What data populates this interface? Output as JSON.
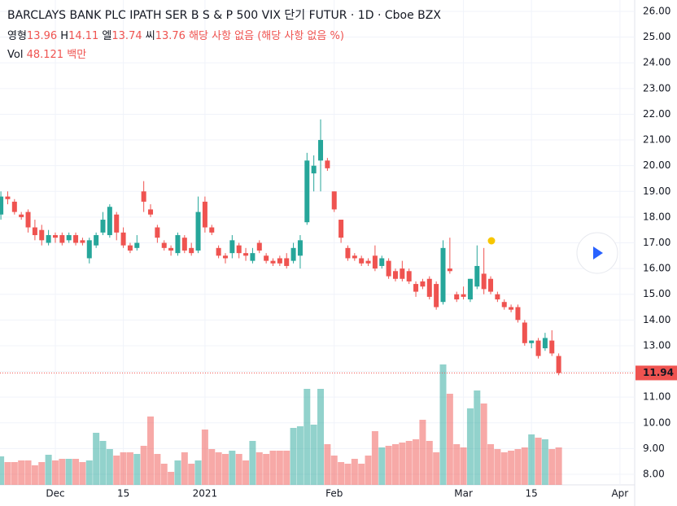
{
  "chart_data": {
    "type": "candlestick",
    "title": "BARCLAYS BANK PLC IPATH SER B S & P 500 VIX 단기 FUTUR · 1D · Cboe BZX",
    "legend": {
      "open_label": "영형",
      "open": 13.96,
      "high_label": "H",
      "high": 14.11,
      "low_label": "엘",
      "low": 13.74,
      "close_label": "씨",
      "close": 13.76,
      "change": "해당 사항 없음 (해당 사항 없음 %)",
      "volume_label": "Vol",
      "volume": 48.121,
      "volume_unit": "백만"
    },
    "last_price": 11.94,
    "up_color": "#26a69a",
    "down_color": "#ef5350",
    "grid": true,
    "categories": [
      null,
      null,
      null,
      null,
      null,
      null,
      null,
      null,
      "Dec",
      null,
      null,
      null,
      null,
      null,
      null,
      null,
      null,
      null,
      "15",
      null,
      null,
      null,
      null,
      null,
      null,
      null,
      null,
      null,
      null,
      null,
      "2021",
      null,
      null,
      null,
      null,
      null,
      null,
      null,
      null,
      null,
      null,
      null,
      null,
      null,
      null,
      null,
      null,
      null,
      null,
      "Feb",
      null,
      null,
      null,
      null,
      null,
      null,
      null,
      null,
      null,
      null,
      null,
      null,
      null,
      null,
      null,
      null,
      null,
      null,
      "Mar",
      null,
      null,
      null,
      null,
      null,
      null,
      null,
      null,
      null,
      "15",
      null,
      null,
      null,
      null,
      null,
      null,
      null,
      null,
      null,
      null,
      null,
      null,
      "Apr"
    ],
    "open": [
      18.1,
      18.8,
      18.6,
      18.1,
      18.2,
      17.6,
      17.5,
      17.0,
      17.3,
      17.3,
      17.1,
      17.3,
      17.1,
      16.4,
      16.9,
      17.4,
      17.3,
      18.1,
      17.4,
      16.9,
      16.8,
      19.0,
      18.3,
      17.6,
      17.0,
      16.8,
      16.6,
      17.2,
      16.8,
      16.7,
      18.6,
      17.6,
      16.8,
      16.5,
      16.6,
      16.9,
      16.6,
      16.3,
      17.0,
      16.5,
      16.3,
      16.4,
      16.4,
      16.3,
      16.5,
      17.8,
      19.7,
      20.2,
      20.2,
      19.0,
      17.9,
      16.8,
      16.5,
      16.4,
      16.3,
      16.5,
      16.1,
      16.3,
      15.9,
      16.0,
      15.9,
      15.4,
      15.5,
      15.6,
      15.4,
      14.7,
      16.0,
      15.0,
      15.0,
      14.8,
      15.3,
      15.8,
      15.6,
      15.0,
      14.7,
      14.5,
      14.5,
      13.9,
      13.1,
      13.2,
      12.9,
      13.2,
      12.6,
      null,
      null,
      null,
      null,
      null,
      null,
      null,
      null,
      null
    ],
    "high": [
      19.0,
      19.0,
      18.7,
      18.2,
      18.3,
      17.9,
      17.7,
      17.5,
      17.4,
      17.4,
      17.4,
      17.4,
      17.2,
      17.2,
      17.4,
      18.2,
      18.5,
      18.2,
      17.6,
      17.0,
      17.3,
      19.4,
      18.5,
      17.7,
      17.1,
      16.9,
      17.4,
      17.3,
      17.0,
      18.8,
      18.8,
      17.7,
      16.9,
      16.6,
      17.3,
      17.0,
      16.8,
      16.8,
      17.1,
      16.6,
      16.4,
      16.5,
      16.6,
      17.0,
      17.3,
      20.5,
      20.4,
      21.8,
      20.3,
      19.0,
      17.9,
      16.9,
      16.6,
      16.5,
      16.4,
      16.9,
      16.5,
      16.4,
      16.0,
      16.3,
      16.0,
      15.5,
      15.6,
      15.7,
      15.5,
      17.1,
      17.2,
      15.1,
      15.3,
      15.6,
      16.9,
      16.8,
      15.7,
      15.1,
      14.8,
      14.6,
      14.6,
      14.0,
      13.2,
      13.3,
      13.5,
      13.6,
      12.7,
      null,
      null,
      null,
      null,
      null,
      null,
      null,
      null,
      null
    ],
    "low": [
      17.9,
      18.5,
      18.1,
      17.9,
      17.4,
      17.1,
      16.9,
      16.9,
      17.0,
      16.9,
      17.0,
      16.9,
      16.9,
      16.2,
      16.8,
      17.3,
      17.2,
      17.1,
      16.8,
      16.6,
      16.7,
      18.2,
      18.0,
      17.0,
      16.7,
      16.5,
      16.5,
      16.6,
      16.5,
      16.6,
      17.4,
      17.3,
      16.4,
      16.2,
      16.4,
      16.4,
      16.3,
      16.2,
      16.6,
      16.2,
      16.1,
      16.1,
      16.0,
      16.2,
      16.0,
      17.7,
      19.0,
      19.0,
      19.8,
      18.2,
      17.0,
      16.3,
      16.3,
      16.1,
      16.1,
      15.9,
      16.0,
      15.6,
      15.5,
      15.5,
      15.4,
      14.9,
      15.2,
      14.8,
      14.4,
      14.6,
      15.8,
      14.7,
      14.8,
      14.7,
      15.2,
      15.0,
      15.0,
      14.7,
      14.4,
      14.3,
      13.9,
      13.0,
      12.9,
      12.5,
      12.8,
      12.6,
      11.85,
      null,
      null,
      null,
      null,
      null,
      null,
      null,
      null,
      null
    ],
    "close": [
      18.8,
      18.7,
      18.2,
      18.0,
      17.6,
      17.3,
      17.1,
      17.3,
      17.2,
      17.0,
      17.3,
      17.0,
      17.0,
      17.1,
      17.3,
      17.9,
      18.4,
      17.4,
      16.9,
      16.7,
      17.0,
      18.6,
      18.1,
      17.2,
      16.8,
      16.7,
      17.3,
      16.7,
      16.6,
      18.2,
      17.6,
      17.4,
      16.5,
      16.4,
      17.1,
      16.6,
      16.5,
      16.6,
      16.7,
      16.3,
      16.2,
      16.2,
      16.1,
      16.8,
      17.1,
      20.2,
      20.0,
      21.0,
      19.9,
      18.3,
      17.2,
      16.4,
      16.4,
      16.2,
      16.2,
      16.0,
      16.4,
      15.7,
      15.6,
      15.6,
      15.5,
      15.1,
      15.3,
      14.9,
      14.5,
      16.8,
      15.9,
      14.8,
      14.9,
      15.6,
      16.1,
      15.2,
      15.1,
      14.8,
      14.5,
      14.4,
      14.0,
      13.1,
      13.2,
      12.6,
      13.3,
      12.7,
      11.94,
      null,
      null,
      null,
      null,
      null,
      null,
      null,
      null,
      null
    ],
    "volume": [
      35,
      28,
      28,
      30,
      30,
      24,
      28,
      37,
      30,
      32,
      32,
      32,
      28,
      30,
      64,
      54,
      44,
      36,
      40,
      40,
      38,
      48,
      84,
      38,
      26,
      16,
      30,
      40,
      26,
      30,
      68,
      44,
      40,
      38,
      42,
      38,
      30,
      54,
      40,
      38,
      42,
      42,
      42,
      70,
      72,
      118,
      74,
      118,
      50,
      36,
      28,
      26,
      32,
      26,
      36,
      66,
      46,
      48,
      50,
      52,
      54,
      56,
      80,
      54,
      40,
      148,
      112,
      50,
      46,
      94,
      116,
      100,
      50,
      44,
      40,
      42,
      44,
      46,
      62,
      58,
      56,
      44,
      46,
      null,
      null,
      null,
      null,
      null,
      null,
      null,
      null,
      null
    ],
    "ylim": [
      8,
      26
    ],
    "yticks": [
      {
        "value": 8,
        "label": "8.00"
      },
      {
        "value": 9,
        "label": "9.00"
      },
      {
        "value": 10,
        "label": "10.00"
      },
      {
        "value": 11,
        "label": "11.00"
      },
      {
        "value": 12,
        "label": "12.00"
      },
      {
        "value": 13,
        "label": "13.00"
      },
      {
        "value": 14,
        "label": "14.00"
      },
      {
        "value": 15,
        "label": "15.00"
      },
      {
        "value": 16,
        "label": "16.00"
      },
      {
        "value": 17,
        "label": "17.00"
      },
      {
        "value": 18,
        "label": "18.00"
      },
      {
        "value": 19,
        "label": "19.00"
      },
      {
        "value": 20,
        "label": "20.00"
      },
      {
        "value": 21,
        "label": "21.00"
      },
      {
        "value": 22,
        "label": "22.00"
      },
      {
        "value": 23,
        "label": "23.00"
      },
      {
        "value": 24,
        "label": "24.00"
      },
      {
        "value": 25,
        "label": "25.00"
      },
      {
        "value": 26,
        "label": "26.00"
      }
    ]
  }
}
